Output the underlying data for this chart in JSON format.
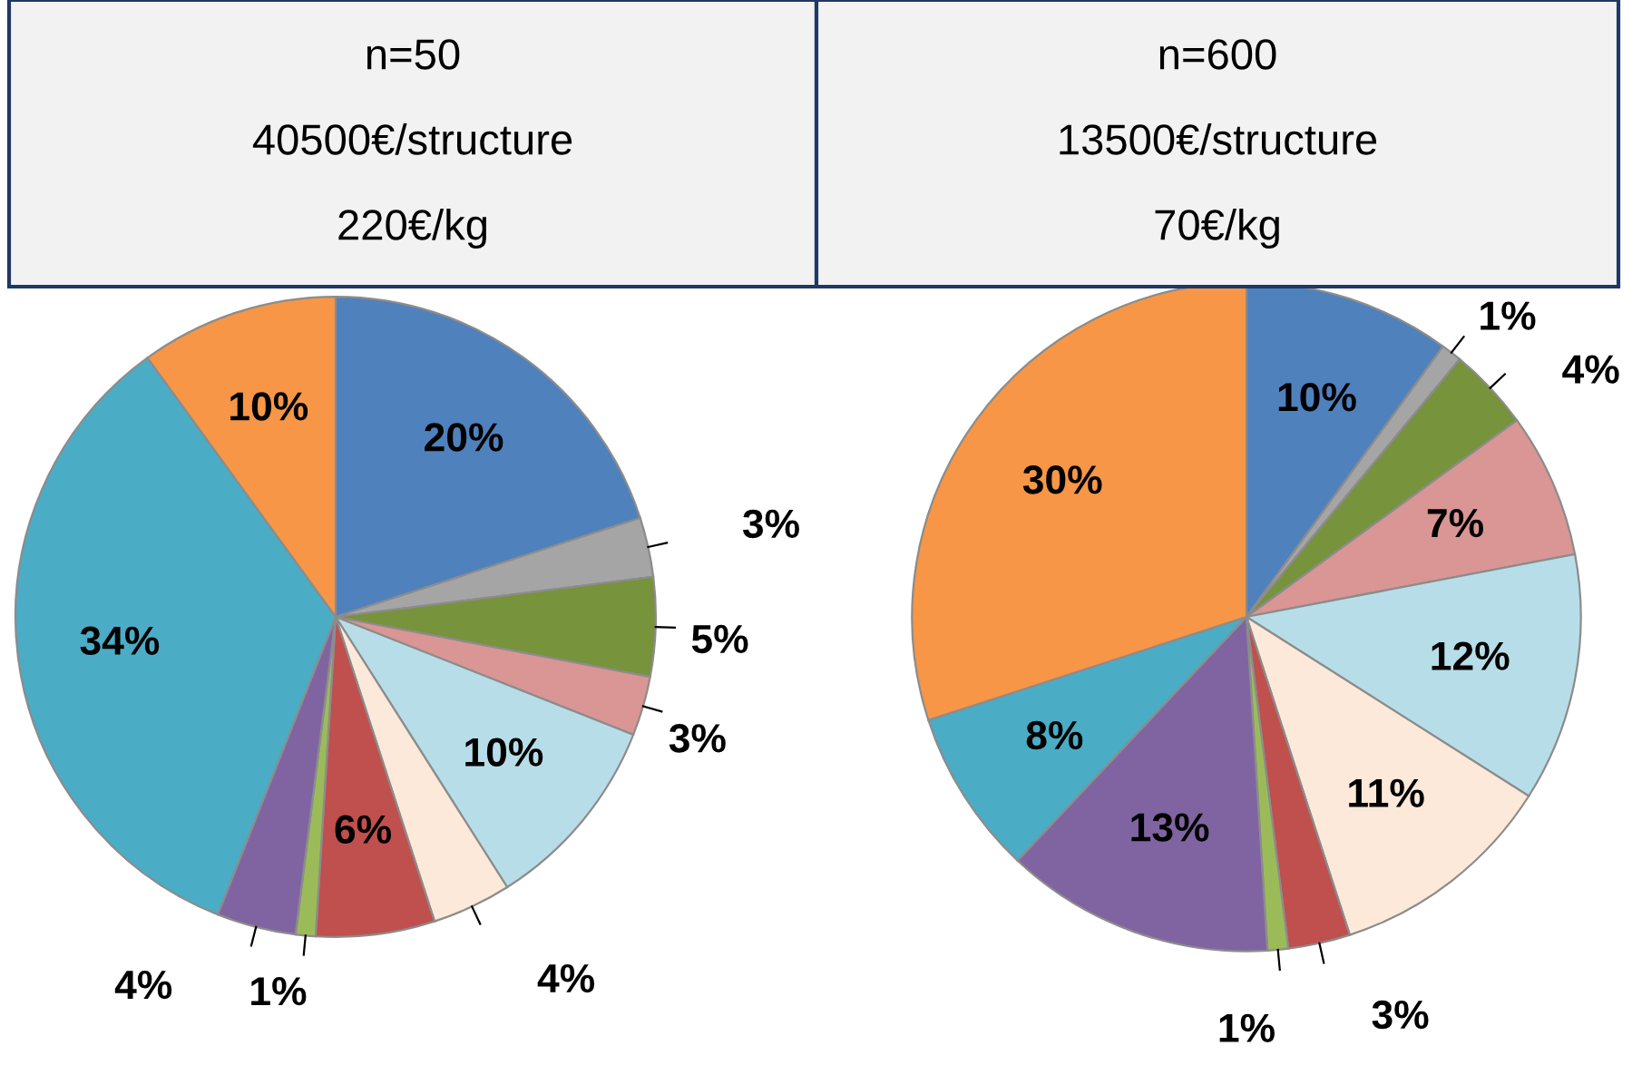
{
  "chart_data": [
    {
      "type": "pie",
      "title": "n=50",
      "subtitle": "40500€/structure",
      "annotations": [
        "220€/kg"
      ],
      "categories": [
        null,
        null,
        null,
        null,
        null,
        null,
        null,
        null,
        null,
        null,
        null
      ],
      "values": [
        20,
        3,
        5,
        3,
        10,
        4,
        6,
        1,
        4,
        34,
        10
      ],
      "colors": [
        "#4f81bd",
        "#a5a5a5",
        "#77933c",
        "#d99694",
        "#b7dee8",
        "#fde9d9",
        "#c0504d",
        "#9bbb59",
        "#8064a2",
        "#4bacc6",
        "#f79646"
      ],
      "value_labels": [
        "20%",
        "3%",
        "5%",
        "3%",
        "10%",
        "4%",
        "6%",
        "1%",
        "4%",
        "34%",
        "10%"
      ],
      "legend": false
    },
    {
      "type": "pie",
      "title": "n=600",
      "subtitle": "13500€/structure",
      "annotations": [
        "70€/kg"
      ],
      "categories": [
        null,
        null,
        null,
        null,
        null,
        null,
        null,
        null,
        null,
        null,
        null
      ],
      "values": [
        10,
        1,
        4,
        7,
        12,
        11,
        3,
        1,
        13,
        8,
        30
      ],
      "colors": [
        "#4f81bd",
        "#a5a5a5",
        "#77933c",
        "#d99694",
        "#b7dee8",
        "#fde9d9",
        "#c0504d",
        "#9bbb59",
        "#8064a2",
        "#4bacc6",
        "#f79646"
      ],
      "value_labels": [
        "10%",
        "1%",
        "4%",
        "7%",
        "12%",
        "11%",
        "3%",
        "1%",
        "13%",
        "8%",
        "30%"
      ],
      "legend": false
    }
  ]
}
